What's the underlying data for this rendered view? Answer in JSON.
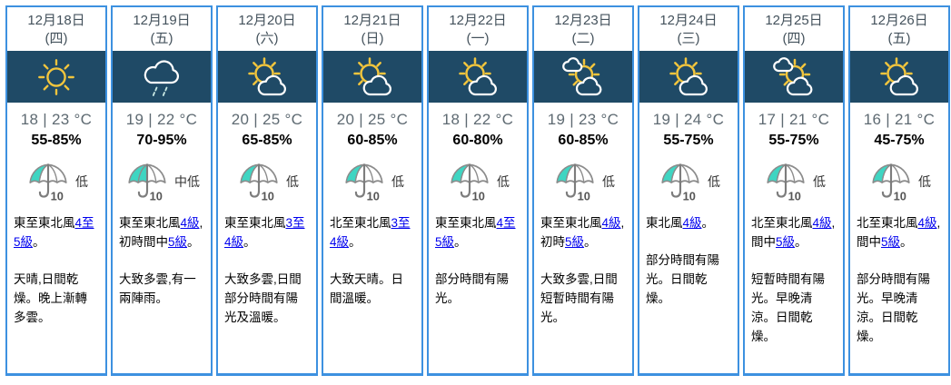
{
  "widget": "nine-day-weather-forecast",
  "colors": {
    "icon_band_navy": "#1F4A66",
    "card_border_blue": "#3D91E0",
    "sun_yellow": "#F2C53D",
    "psr_teal": "#3FD5C2",
    "link_blue": "#0000EE",
    "date_text": "#44525C",
    "temperature_text": "#5E6A72"
  },
  "icon_names": {
    "sunny": "sunny-icon",
    "rain": "rain-cloud-icon",
    "sun-cloud": "sunny-periods-icon",
    "cloud-sun-cloud": "sunny-intervals-icon",
    "umbrella": "psr-umbrella-10-icon"
  },
  "cards": [
    {
      "date_line1": "12月18日",
      "date_line2": "(四)",
      "icon": "sunny",
      "temperature": "18 | 23 °C",
      "humidity": "55-85%",
      "psr": "低",
      "psr_fill": "low",
      "wind": [
        {
          "text": "東至東北風"
        },
        {
          "text": "4至5級",
          "link": true
        },
        {
          "text": "。"
        }
      ],
      "summary": "天晴,日間乾燥。晚上漸轉多雲。"
    },
    {
      "date_line1": "12月19日",
      "date_line2": "(五)",
      "icon": "rain",
      "temperature": "19 | 22 °C",
      "humidity": "70-95%",
      "psr": "中低",
      "psr_fill": "medium-low",
      "wind": [
        {
          "text": "東至東北風"
        },
        {
          "text": "4級",
          "link": true
        },
        {
          "text": ",初時間中"
        },
        {
          "text": "5級",
          "link": true
        },
        {
          "text": "。"
        }
      ],
      "summary": "大致多雲,有一兩陣雨。"
    },
    {
      "date_line1": "12月20日",
      "date_line2": "(六)",
      "icon": "sun-cloud",
      "temperature": "20 | 25 °C",
      "humidity": "65-85%",
      "psr": "低",
      "psr_fill": "low",
      "wind": [
        {
          "text": "東至東北風"
        },
        {
          "text": "3至4級",
          "link": true
        },
        {
          "text": "。"
        }
      ],
      "summary": "大致多雲,日間部分時間有陽光及溫暖。"
    },
    {
      "date_line1": "12月21日",
      "date_line2": "(日)",
      "icon": "sun-cloud",
      "temperature": "20 | 25 °C",
      "humidity": "60-85%",
      "psr": "低",
      "psr_fill": "low",
      "wind": [
        {
          "text": "北至東北風"
        },
        {
          "text": "3至4級",
          "link": true
        },
        {
          "text": "。"
        }
      ],
      "summary": "大致天晴。日間溫暖。"
    },
    {
      "date_line1": "12月22日",
      "date_line2": "(一)",
      "icon": "sun-cloud",
      "temperature": "18 | 22 °C",
      "humidity": "60-80%",
      "psr": "低",
      "psr_fill": "low",
      "wind": [
        {
          "text": "東至東北風"
        },
        {
          "text": "4至5級",
          "link": true
        },
        {
          "text": "。"
        }
      ],
      "summary": "部分時間有陽光。"
    },
    {
      "date_line1": "12月23日",
      "date_line2": "(二)",
      "icon": "cloud-sun-cloud",
      "temperature": "19 | 23 °C",
      "humidity": "60-85%",
      "psr": "低",
      "psr_fill": "low",
      "wind": [
        {
          "text": "東至東北風"
        },
        {
          "text": "4級",
          "link": true
        },
        {
          "text": ",初時"
        },
        {
          "text": "5級",
          "link": true
        },
        {
          "text": "。"
        }
      ],
      "summary": "大致多雲,日間短暫時間有陽光。"
    },
    {
      "date_line1": "12月24日",
      "date_line2": "(三)",
      "icon": "sun-cloud",
      "temperature": "19 | 24 °C",
      "humidity": "55-75%",
      "psr": "低",
      "psr_fill": "low",
      "wind": [
        {
          "text": "東北風"
        },
        {
          "text": "4級",
          "link": true
        },
        {
          "text": "。"
        }
      ],
      "summary": "部分時間有陽光。日間乾燥。"
    },
    {
      "date_line1": "12月25日",
      "date_line2": "(四)",
      "icon": "cloud-sun-cloud",
      "temperature": "17 | 21 °C",
      "humidity": "55-75%",
      "psr": "低",
      "psr_fill": "low",
      "wind": [
        {
          "text": "北至東北風"
        },
        {
          "text": "4級",
          "link": true
        },
        {
          "text": ",間中"
        },
        {
          "text": "5級",
          "link": true
        },
        {
          "text": "。"
        }
      ],
      "summary": "短暫時間有陽光。早晚清涼。日間乾燥。"
    },
    {
      "date_line1": "12月26日",
      "date_line2": "(五)",
      "icon": "sun-cloud",
      "temperature": "16 | 21 °C",
      "humidity": "45-75%",
      "psr": "低",
      "psr_fill": "low",
      "wind": [
        {
          "text": "北至東北風"
        },
        {
          "text": "4級",
          "link": true
        },
        {
          "text": ",間中"
        },
        {
          "text": "5級",
          "link": true
        },
        {
          "text": "。"
        }
      ],
      "summary": "部分時間有陽光。早晚清涼。日間乾燥。"
    }
  ]
}
